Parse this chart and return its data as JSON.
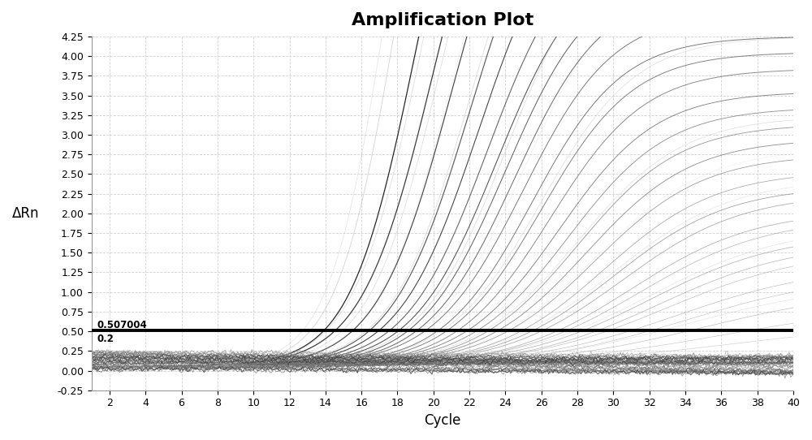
{
  "title": "Amplification Plot",
  "xlabel": "Cycle",
  "ylabel": "ΔRn",
  "xlim": [
    1,
    40
  ],
  "ylim": [
    -0.25,
    4.25
  ],
  "yticks": [
    -0.25,
    0.0,
    0.25,
    0.5,
    0.75,
    1.0,
    1.25,
    1.5,
    1.75,
    2.0,
    2.25,
    2.5,
    2.75,
    3.0,
    3.25,
    3.5,
    3.75,
    4.0,
    4.25
  ],
  "xticks": [
    2,
    4,
    6,
    8,
    10,
    12,
    14,
    16,
    18,
    20,
    22,
    24,
    26,
    28,
    30,
    32,
    34,
    36,
    38,
    40
  ],
  "threshold_value": 0.507004,
  "threshold_label": "0.507004",
  "threshold_label2": "0.2",
  "background_color": "#ffffff",
  "grid_color": "#cccccc",
  "title_fontsize": 16,
  "axis_label_fontsize": 12
}
